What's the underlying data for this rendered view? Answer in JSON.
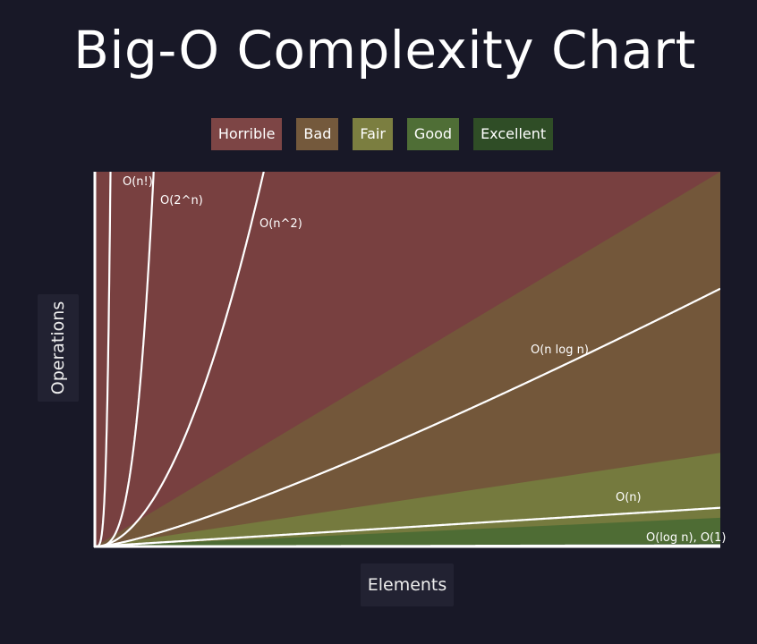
{
  "chart_data": {
    "type": "area",
    "title": "Big-O Complexity Chart",
    "xlabel": "Elements",
    "ylabel": "Operations",
    "xlim": [
      0,
      100
    ],
    "ylim": [
      0,
      60
    ],
    "grid": false,
    "legend_placement": "top-center",
    "regions": [
      {
        "name": "Horrible",
        "color": "#784040",
        "legend_color": "#7d4545",
        "upper_slope": null
      },
      {
        "name": "Bad",
        "color": "#73573a",
        "legend_color": "#74593c",
        "upper_slope": 0.6
      },
      {
        "name": "Fair",
        "color": "#757a3e",
        "legend_color": "#7b7e40",
        "upper_slope": 0.15
      },
      {
        "name": "Good",
        "color": "#4e6c34",
        "legend_color": "#4f6e36",
        "upper_slope": 0.046
      },
      {
        "name": "Excellent",
        "color": "#2e4b27",
        "legend_color": "#2f4d26",
        "upper_slope": 0.005
      }
    ],
    "series": [
      {
        "name": "O(n!)",
        "x": [
          0,
          1,
          2,
          3,
          4
        ],
        "y": [
          0,
          1,
          2,
          6,
          24
        ]
      },
      {
        "name": "O(2^n)",
        "x": [
          0,
          1,
          2,
          3,
          4,
          5,
          6,
          9.4
        ],
        "y": [
          0,
          2,
          4,
          8,
          16,
          32,
          64,
          60
        ]
      },
      {
        "name": "O(n^2)",
        "x": [
          0,
          5,
          10,
          15,
          20,
          25,
          27
        ],
        "y": [
          0,
          3,
          8.5,
          18,
          31,
          46,
          60
        ]
      },
      {
        "name": "O(n log n)",
        "x": [
          0,
          10,
          20,
          30,
          40,
          50,
          60,
          70,
          80,
          90,
          100
        ],
        "y": [
          0,
          3.1,
          7.8,
          13,
          18.4,
          24.2,
          30,
          35.8,
          41.4,
          46.5,
          40
        ]
      },
      {
        "name": "O(n)",
        "x": [
          0,
          50,
          100
        ],
        "y": [
          0,
          3.1,
          6.2
        ]
      },
      {
        "name": "O(log n), O(1)",
        "x": [
          0,
          100
        ],
        "y": [
          0,
          0.2
        ]
      }
    ]
  }
}
